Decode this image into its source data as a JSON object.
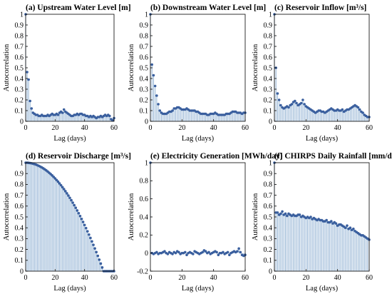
{
  "colors": {
    "stem": "#8fb0d2",
    "marker": "#3a5f9e",
    "axis": "#000000",
    "background": "#ffffff"
  },
  "chart_data": [
    {
      "type": "scatter",
      "title": "(a) Upstream Water Level [m]",
      "xlabel": "Lag (days)",
      "ylabel": "Autocorrelation",
      "xlim": [
        0,
        60
      ],
      "ylim": [
        0,
        1
      ],
      "xticks": [
        "0",
        "20",
        "40",
        "60"
      ],
      "yticks": [
        "0",
        "0.1",
        "0.2",
        "0.3",
        "0.4",
        "0.5",
        "0.6",
        "0.7",
        "0.8",
        "0.9",
        "1"
      ],
      "x": [
        0,
        1,
        2,
        3,
        4,
        5,
        6,
        7,
        8,
        9,
        10,
        11,
        12,
        13,
        14,
        15,
        16,
        17,
        18,
        19,
        20,
        21,
        22,
        23,
        24,
        25,
        26,
        27,
        28,
        29,
        30,
        31,
        32,
        33,
        34,
        35,
        36,
        37,
        38,
        39,
        40,
        41,
        42,
        43,
        44,
        45,
        46,
        47,
        48,
        49,
        50,
        51,
        52,
        53,
        54,
        55,
        56,
        57,
        58,
        59,
        60
      ],
      "values": [
        1.0,
        0.46,
        0.39,
        0.19,
        0.12,
        0.08,
        0.07,
        0.06,
        0.06,
        0.05,
        0.05,
        0.06,
        0.05,
        0.05,
        0.05,
        0.06,
        0.05,
        0.06,
        0.07,
        0.06,
        0.06,
        0.07,
        0.06,
        0.08,
        0.09,
        0.08,
        0.11,
        0.09,
        0.08,
        0.07,
        0.06,
        0.05,
        0.05,
        0.06,
        0.06,
        0.07,
        0.06,
        0.07,
        0.07,
        0.06,
        0.06,
        0.05,
        0.05,
        0.04,
        0.05,
        0.04,
        0.05,
        0.04,
        0.03,
        0.04,
        0.04,
        0.05,
        0.04,
        0.05,
        0.06,
        0.05,
        0.06,
        0.05,
        0.02,
        0.01,
        0.03
      ]
    },
    {
      "type": "scatter",
      "title": "(b) Downstream Water Level [m]",
      "xlabel": "Lag (days)",
      "ylabel": "Autocorrelation",
      "xlim": [
        0,
        60
      ],
      "ylim": [
        0,
        1
      ],
      "xticks": [
        "0",
        "20",
        "40",
        "60"
      ],
      "yticks": [
        "0",
        "0.1",
        "0.2",
        "0.3",
        "0.4",
        "0.5",
        "0.6",
        "0.7",
        "0.8",
        "0.9",
        "1"
      ],
      "x": [
        0,
        1,
        2,
        3,
        4,
        5,
        6,
        7,
        8,
        9,
        10,
        11,
        12,
        13,
        14,
        15,
        16,
        17,
        18,
        19,
        20,
        21,
        22,
        23,
        24,
        25,
        26,
        27,
        28,
        29,
        30,
        31,
        32,
        33,
        34,
        35,
        36,
        37,
        38,
        39,
        40,
        41,
        42,
        43,
        44,
        45,
        46,
        47,
        48,
        49,
        50,
        51,
        52,
        53,
        54,
        55,
        56,
        57,
        58,
        59,
        60
      ],
      "values": [
        1.0,
        0.53,
        0.43,
        0.33,
        0.24,
        0.16,
        0.1,
        0.08,
        0.07,
        0.07,
        0.07,
        0.08,
        0.09,
        0.09,
        0.1,
        0.12,
        0.12,
        0.13,
        0.13,
        0.12,
        0.11,
        0.11,
        0.11,
        0.12,
        0.11,
        0.1,
        0.1,
        0.1,
        0.1,
        0.09,
        0.09,
        0.08,
        0.07,
        0.07,
        0.07,
        0.07,
        0.06,
        0.06,
        0.07,
        0.07,
        0.07,
        0.08,
        0.07,
        0.06,
        0.06,
        0.06,
        0.06,
        0.06,
        0.07,
        0.07,
        0.07,
        0.08,
        0.09,
        0.09,
        0.09,
        0.08,
        0.08,
        0.08,
        0.07,
        0.08,
        0.08
      ]
    },
    {
      "type": "scatter",
      "title": "(c) Reservoir Inflow [m³/s]",
      "xlabel": "Lag (days)",
      "ylabel": "Autocorrelation",
      "xlim": [
        0,
        60
      ],
      "ylim": [
        0,
        1
      ],
      "xticks": [
        "0",
        "20",
        "40",
        "60"
      ],
      "yticks": [
        "0",
        "0.1",
        "0.2",
        "0.3",
        "0.4",
        "0.5",
        "0.6",
        "0.7",
        "0.8",
        "0.9",
        "1"
      ],
      "x": [
        0,
        1,
        2,
        3,
        4,
        5,
        6,
        7,
        8,
        9,
        10,
        11,
        12,
        13,
        14,
        15,
        16,
        17,
        18,
        19,
        20,
        21,
        22,
        23,
        24,
        25,
        26,
        27,
        28,
        29,
        30,
        31,
        32,
        33,
        34,
        35,
        36,
        37,
        38,
        39,
        40,
        41,
        42,
        43,
        44,
        45,
        46,
        47,
        48,
        49,
        50,
        51,
        52,
        53,
        54,
        55,
        56,
        57,
        58,
        59,
        60
      ],
      "values": [
        1.0,
        0.5,
        0.26,
        0.2,
        0.15,
        0.13,
        0.12,
        0.13,
        0.14,
        0.13,
        0.15,
        0.16,
        0.18,
        0.19,
        0.17,
        0.15,
        0.16,
        0.17,
        0.2,
        0.16,
        0.14,
        0.13,
        0.12,
        0.11,
        0.1,
        0.09,
        0.08,
        0.09,
        0.1,
        0.1,
        0.09,
        0.09,
        0.08,
        0.09,
        0.1,
        0.11,
        0.12,
        0.11,
        0.1,
        0.1,
        0.11,
        0.1,
        0.1,
        0.11,
        0.09,
        0.1,
        0.11,
        0.11,
        0.12,
        0.13,
        0.14,
        0.15,
        0.14,
        0.13,
        0.11,
        0.09,
        0.08,
        0.06,
        0.05,
        0.04,
        0.04
      ]
    },
    {
      "type": "scatter",
      "title": "(d) Reservoir Discharge [m³/s]",
      "xlabel": "Lag (days)",
      "ylabel": "Autocorrelation",
      "xlim": [
        0,
        60
      ],
      "ylim": [
        0,
        1
      ],
      "xticks": [
        "0",
        "20",
        "40",
        "60"
      ],
      "yticks": [
        "0",
        "0.1",
        "0.2",
        "0.3",
        "0.4",
        "0.5",
        "0.6",
        "0.7",
        "0.8",
        "0.9",
        "1"
      ],
      "x": [
        0,
        1,
        2,
        3,
        4,
        5,
        6,
        7,
        8,
        9,
        10,
        11,
        12,
        13,
        14,
        15,
        16,
        17,
        18,
        19,
        20,
        21,
        22,
        23,
        24,
        25,
        26,
        27,
        28,
        29,
        30,
        31,
        32,
        33,
        34,
        35,
        36,
        37,
        38,
        39,
        40,
        41,
        42,
        43,
        44,
        45,
        46,
        47,
        48,
        49,
        50,
        51,
        52,
        53,
        54,
        55,
        56,
        57,
        58,
        59,
        60
      ],
      "values": [
        1.0,
        0.9996,
        0.9985,
        0.9967,
        0.9941,
        0.9908,
        0.9868,
        0.9821,
        0.9766,
        0.9704,
        0.9635,
        0.9559,
        0.9476,
        0.9385,
        0.9288,
        0.9183,
        0.9071,
        0.8952,
        0.8826,
        0.8693,
        0.8552,
        0.8405,
        0.825,
        0.8088,
        0.7919,
        0.7743,
        0.756,
        0.737,
        0.7173,
        0.6968,
        0.6757,
        0.6539,
        0.6313,
        0.6081,
        0.5841,
        0.5595,
        0.5341,
        0.5081,
        0.4813,
        0.4539,
        0.4257,
        0.3969,
        0.3673,
        0.3371,
        0.3062,
        0.2746,
        0.2422,
        0.2093,
        0.1756,
        0.1412,
        0.1061,
        0.0703,
        0.0339,
        0.0,
        0.0,
        0.0,
        0.0,
        0.0,
        0.0,
        0.0,
        0.0
      ]
    },
    {
      "type": "scatter",
      "title": "(e) Electricity Generation [MWh/day]",
      "xlabel": "Lag (days)",
      "ylabel": "Autocorrelation",
      "xlim": [
        0,
        60
      ],
      "ylim": [
        -0.2,
        1
      ],
      "xticks": [
        "0",
        "20",
        "40",
        "60"
      ],
      "yticks": [
        "-0.2",
        "0",
        "0.2",
        "0.4",
        "0.6",
        "0.8",
        "1"
      ],
      "x": [
        0,
        1,
        2,
        3,
        4,
        5,
        6,
        7,
        8,
        9,
        10,
        11,
        12,
        13,
        14,
        15,
        16,
        17,
        18,
        19,
        20,
        21,
        22,
        23,
        24,
        25,
        26,
        27,
        28,
        29,
        30,
        31,
        32,
        33,
        34,
        35,
        36,
        37,
        38,
        39,
        40,
        41,
        42,
        43,
        44,
        45,
        46,
        47,
        48,
        49,
        50,
        51,
        52,
        53,
        54,
        55,
        56,
        57,
        58,
        59,
        60
      ],
      "values": [
        1.0,
        0.0,
        -0.01,
        0.0,
        0.01,
        -0.01,
        0.0,
        0.0,
        0.01,
        0.02,
        0.0,
        -0.01,
        0.01,
        0.0,
        -0.01,
        0.01,
        0.0,
        0.02,
        0.01,
        -0.01,
        0.0,
        0.0,
        0.01,
        -0.02,
        0.0,
        0.01,
        0.0,
        -0.01,
        0.02,
        0.01,
        0.0,
        -0.01,
        0.0,
        0.01,
        0.03,
        0.02,
        0.0,
        0.01,
        -0.01,
        0.0,
        0.01,
        0.02,
        0.01,
        -0.02,
        0.0,
        0.0,
        0.01,
        -0.01,
        0.0,
        0.01,
        -0.02,
        0.0,
        0.01,
        0.02,
        0.01,
        0.02,
        0.05,
        0.01,
        -0.02,
        -0.03,
        -0.02
      ]
    },
    {
      "type": "scatter",
      "title": "(f) CHIRPS Daily Rainfall [mm/day]",
      "xlabel": "Lag (days)",
      "ylabel": "Autocorrelation",
      "xlim": [
        0,
        60
      ],
      "ylim": [
        0,
        1
      ],
      "xticks": [
        "0",
        "20",
        "40",
        "60"
      ],
      "yticks": [
        "0",
        "0.1",
        "0.2",
        "0.3",
        "0.4",
        "0.5",
        "0.6",
        "0.7",
        "0.8",
        "0.9",
        "1"
      ],
      "x": [
        0,
        1,
        2,
        3,
        4,
        5,
        6,
        7,
        8,
        9,
        10,
        11,
        12,
        13,
        14,
        15,
        16,
        17,
        18,
        19,
        20,
        21,
        22,
        23,
        24,
        25,
        26,
        27,
        28,
        29,
        30,
        31,
        32,
        33,
        34,
        35,
        36,
        37,
        38,
        39,
        40,
        41,
        42,
        43,
        44,
        45,
        46,
        47,
        48,
        49,
        50,
        51,
        52,
        53,
        54,
        55,
        56,
        57,
        58,
        59,
        60
      ],
      "values": [
        1.0,
        0.54,
        0.54,
        0.52,
        0.53,
        0.55,
        0.52,
        0.53,
        0.51,
        0.53,
        0.52,
        0.51,
        0.52,
        0.51,
        0.51,
        0.52,
        0.52,
        0.5,
        0.51,
        0.5,
        0.49,
        0.5,
        0.49,
        0.5,
        0.48,
        0.49,
        0.48,
        0.47,
        0.48,
        0.47,
        0.47,
        0.46,
        0.46,
        0.47,
        0.45,
        0.45,
        0.46,
        0.44,
        0.45,
        0.44,
        0.42,
        0.43,
        0.43,
        0.42,
        0.41,
        0.4,
        0.42,
        0.39,
        0.4,
        0.38,
        0.39,
        0.37,
        0.36,
        0.35,
        0.34,
        0.33,
        0.33,
        0.32,
        0.31,
        0.3,
        0.29
      ]
    }
  ]
}
